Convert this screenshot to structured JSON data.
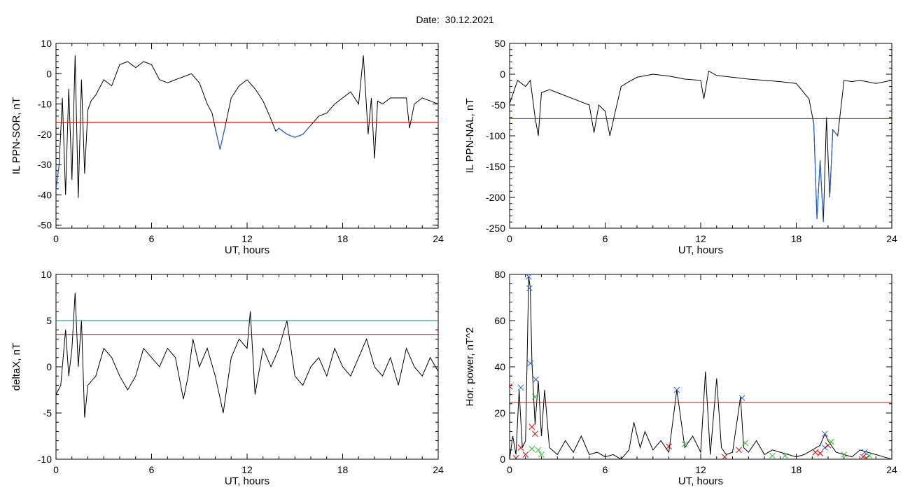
{
  "header": {
    "date_label": "Date:",
    "date_value": "30.12.2021"
  },
  "colors": {
    "trace": "#000000",
    "threshold_red": "#e00000",
    "threshold_teal": "#008b8b",
    "below_threshold": "#1f5fd0",
    "marker_blue": "#1f5fd0",
    "marker_red": "#d00000",
    "marker_green": "#2eb82e"
  },
  "chart_data": [
    {
      "id": "il-sor",
      "type": "line",
      "xlabel": "UT, hours",
      "ylabel": "IL PPN-SOR, nT",
      "xlim": [
        0,
        24
      ],
      "ylim": [
        -51,
        10
      ],
      "xticks": [
        0,
        6,
        12,
        18,
        24
      ],
      "yticks": [
        10,
        0,
        -10,
        -20,
        -30,
        -40,
        -50
      ],
      "threshold": -16,
      "highlight_below_threshold": true,
      "grid": false,
      "series": [
        {
          "x": [
            0,
            0.2,
            0.4,
            0.6,
            0.8,
            1.0,
            1.2,
            1.4,
            1.6,
            1.8,
            2.0,
            2.2,
            2.5,
            3.0,
            3.5,
            4.0,
            4.5,
            5.0,
            5.5,
            6.0,
            6.5,
            7.0,
            7.5,
            8.0,
            8.5,
            9.0,
            9.5,
            9.8,
            10.0,
            10.3,
            10.6,
            11.0,
            11.5,
            12.0,
            12.5,
            13.0,
            13.5,
            13.8,
            14.0,
            14.5,
            15.0,
            15.5,
            16.0,
            16.5,
            17.0,
            17.5,
            18.0,
            18.5,
            19.0,
            19.3,
            19.6,
            19.8,
            20.0,
            20.2,
            20.5,
            21.0,
            21.5,
            22.0,
            22.2,
            22.5,
            23.0,
            23.5,
            24.0
          ],
          "y": [
            -38,
            -30,
            -8,
            -40,
            -5,
            -35,
            6,
            -41,
            -2,
            -33,
            -12,
            -9,
            -7,
            -2,
            -4,
            3,
            4,
            2,
            4,
            3,
            -2,
            -3,
            -2,
            -1,
            0,
            -3,
            -10,
            -13,
            -18,
            -25,
            -18,
            -8,
            -4,
            -2,
            -5,
            -9,
            -15,
            -19,
            -18,
            -20,
            -21,
            -20,
            -17,
            -14,
            -13,
            -10,
            -8,
            -6,
            -10,
            6,
            -20,
            -8,
            -28,
            -9,
            -10,
            -8,
            -8,
            -8,
            -18,
            -10,
            -8,
            -9,
            -10
          ]
        }
      ]
    },
    {
      "id": "il-nal",
      "type": "line",
      "xlabel": "UT, hours",
      "ylabel": "IL PPN-NAL, nT",
      "xlim": [
        0,
        24
      ],
      "ylim": [
        -250,
        50
      ],
      "xticks": [
        0,
        6,
        12,
        18,
        24
      ],
      "yticks": [
        50,
        0,
        -50,
        -100,
        -150,
        -200,
        -250
      ],
      "threshold": -72,
      "highlight_below_threshold": true,
      "grid": false,
      "series": [
        {
          "x": [
            0,
            0.5,
            1.0,
            1.3,
            1.6,
            1.8,
            2.0,
            2.5,
            3.0,
            4.0,
            5.0,
            5.3,
            5.6,
            6.0,
            6.3,
            6.6,
            7.0,
            7.5,
            8.0,
            9.0,
            10.0,
            11.0,
            12.0,
            12.2,
            12.5,
            13.0,
            14.0,
            15.0,
            16.0,
            17.0,
            18.0,
            18.8,
            19.1,
            19.3,
            19.5,
            19.7,
            19.9,
            20.1,
            20.3,
            20.6,
            21.0,
            21.5,
            22.0,
            23.0,
            24.0
          ],
          "y": [
            -48,
            -10,
            -20,
            -10,
            -70,
            -100,
            -30,
            -25,
            -30,
            -40,
            -50,
            -95,
            -50,
            -60,
            -100,
            -65,
            -20,
            -12,
            -5,
            0,
            -3,
            -8,
            -10,
            -40,
            5,
            -2,
            -5,
            -8,
            -10,
            -12,
            -15,
            -40,
            -80,
            -235,
            -140,
            -240,
            -70,
            -200,
            -90,
            -100,
            -10,
            -12,
            -10,
            -15,
            -10
          ]
        }
      ]
    },
    {
      "id": "delta-x",
      "type": "line",
      "xlabel": "UT, hours",
      "ylabel": "deltaX, nT",
      "xlim": [
        0,
        24
      ],
      "ylim": [
        -10,
        10
      ],
      "xticks": [
        0,
        6,
        12,
        18,
        24
      ],
      "yticks": [
        10,
        5,
        0,
        -5,
        -10
      ],
      "thresholds": [
        {
          "value": 5,
          "color": "threshold_teal"
        },
        {
          "value": 3.5,
          "color": "threshold_red"
        }
      ],
      "grid": false,
      "series": [
        {
          "x": [
            0,
            0.3,
            0.6,
            0.8,
            1.0,
            1.2,
            1.4,
            1.6,
            1.8,
            2.0,
            2.5,
            3.0,
            3.5,
            4.0,
            4.5,
            5.0,
            5.5,
            6.0,
            6.5,
            7.0,
            7.5,
            8.0,
            8.3,
            8.6,
            9.0,
            9.5,
            10.0,
            10.5,
            11.0,
            11.5,
            12.0,
            12.2,
            12.5,
            13.0,
            13.5,
            14.0,
            14.5,
            15.0,
            15.5,
            16.0,
            16.5,
            17.0,
            17.5,
            18.0,
            18.5,
            19.0,
            19.5,
            20.0,
            20.5,
            21.0,
            21.5,
            22.0,
            22.5,
            23.0,
            23.5,
            24.0
          ],
          "y": [
            -3,
            -2,
            4,
            -1,
            2,
            8,
            0,
            5,
            -5.5,
            -2,
            -1,
            2,
            1,
            -1,
            -2.5,
            -1,
            2,
            1,
            0,
            2,
            1,
            -3.5,
            -1,
            3,
            0,
            2,
            -1,
            -5,
            1,
            3,
            2,
            6,
            -3,
            2,
            0,
            2,
            5,
            -1,
            -2,
            0,
            1,
            -1,
            2,
            0,
            -1,
            1,
            3,
            0,
            -1,
            1,
            -2,
            2,
            0,
            -1,
            1,
            -0.5
          ]
        }
      ]
    },
    {
      "id": "hor-power",
      "type": "line",
      "xlabel": "UT, hours",
      "ylabel": "Hor. power, nT^2",
      "xlim": [
        0,
        24
      ],
      "ylim": [
        0,
        80
      ],
      "xticks": [
        0,
        6,
        12,
        18,
        24
      ],
      "yticks": [
        80,
        60,
        40,
        20,
        0
      ],
      "threshold": 24.5,
      "grid": false,
      "series": [
        {
          "x": [
            0,
            0.2,
            0.4,
            0.6,
            0.8,
            1.0,
            1.2,
            1.3,
            1.4,
            1.6,
            1.8,
            2.0,
            2.2,
            2.5,
            3.0,
            3.5,
            4.0,
            4.5,
            5.0,
            5.5,
            6.0,
            6.5,
            7.0,
            7.5,
            7.8,
            8.2,
            8.5,
            9.0,
            9.5,
            10.0,
            10.5,
            11.0,
            11.5,
            12.0,
            12.3,
            12.6,
            13.0,
            13.3,
            13.6,
            14.0,
            14.5,
            14.7,
            15.0,
            15.5,
            16.0,
            16.5,
            17.0,
            17.5,
            18.0,
            18.5,
            19.0,
            19.5,
            19.8,
            20.0,
            20.5,
            21.0,
            21.5,
            22.0,
            22.5,
            23.0,
            23.5,
            24.0
          ],
          "y": [
            0,
            10,
            2,
            30,
            5,
            8,
            79,
            74,
            42,
            15,
            34,
            10,
            30,
            5,
            2,
            8,
            3,
            10,
            2,
            3,
            1,
            2,
            0,
            4,
            16,
            5,
            12,
            4,
            8,
            3,
            30,
            5,
            10,
            3,
            38,
            2,
            35,
            5,
            2,
            3,
            27,
            5,
            3,
            8,
            2,
            4,
            3,
            2,
            1,
            2,
            4,
            6,
            11,
            8,
            3,
            2,
            1,
            4,
            3,
            2,
            1,
            0
          ]
        }
      ],
      "markers": [
        {
          "color": "marker_blue",
          "points": [
            [
              1.2,
              79
            ],
            [
              1.25,
              74
            ],
            [
              1.3,
              41.5
            ],
            [
              0.7,
              31
            ],
            [
              1.65,
              34.5
            ],
            [
              10.5,
              30
            ],
            [
              14.6,
              26.5
            ],
            [
              19.8,
              11
            ],
            [
              22.3,
              3
            ],
            [
              19.8,
              5
            ]
          ]
        },
        {
          "color": "marker_red",
          "points": [
            [
              0,
              31.5
            ],
            [
              0.4,
              0.5
            ],
            [
              0.7,
              5
            ],
            [
              1.0,
              2
            ],
            [
              1.4,
              14
            ],
            [
              1.6,
              11
            ],
            [
              10.0,
              5.5
            ],
            [
              13.5,
              1
            ],
            [
              14.4,
              4
            ],
            [
              19.2,
              3
            ],
            [
              19.5,
              2.5
            ],
            [
              20.0,
              6
            ],
            [
              22.2,
              1
            ],
            [
              22.4,
              0.5
            ]
          ]
        },
        {
          "color": "marker_green",
          "points": [
            [
              1.4,
              4.5
            ],
            [
              1.6,
              27
            ],
            [
              1.8,
              4
            ],
            [
              2.0,
              2
            ],
            [
              11.0,
              6.5
            ],
            [
              14.8,
              7
            ],
            [
              16.5,
              1.5
            ],
            [
              17.3,
              1.5
            ],
            [
              20.2,
              7.5
            ],
            [
              21.0,
              2
            ],
            [
              22.6,
              1.5
            ]
          ]
        }
      ]
    }
  ]
}
